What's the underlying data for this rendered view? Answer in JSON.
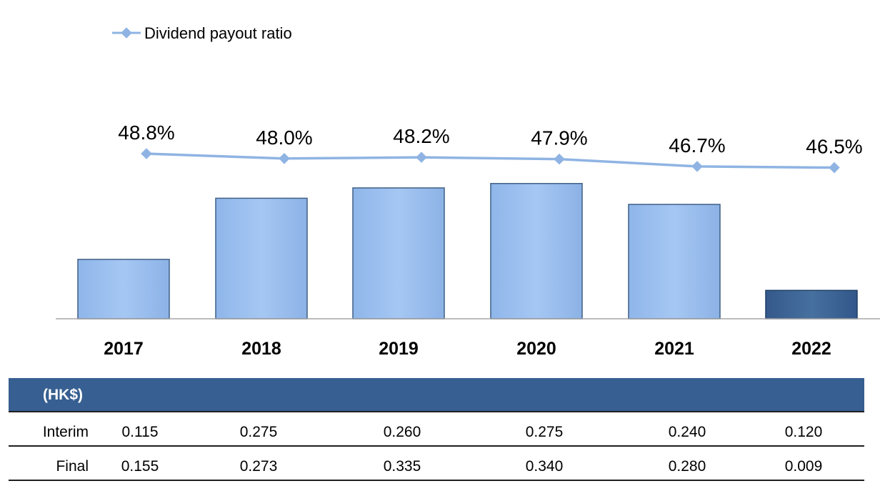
{
  "chart_data": {
    "type": "bar",
    "categories": [
      "2017",
      "2018",
      "2019",
      "2020",
      "2021",
      "2022"
    ],
    "series": [
      {
        "name": "",
        "values": [
          0.27,
          0.548,
          0.595,
          0.615,
          0.52,
          0.129
        ],
        "colors": [
          "#95bdf0",
          "#95bdf0",
          "#95bdf0",
          "#95bdf0",
          "#95bdf0",
          "#3c6496"
        ]
      },
      {
        "name": "Dividend payout ratio",
        "type": "line",
        "values": [
          48.8,
          48.0,
          48.2,
          47.9,
          46.7,
          46.5
        ],
        "labels": [
          "48.8%",
          "48.0%",
          "48.2%",
          "47.9%",
          "46.7%",
          "46.5%"
        ],
        "color": "#8fb4e3"
      }
    ],
    "legend": {
      "position": "top-left",
      "entries": [
        "Dividend payout ratio"
      ]
    },
    "grid": false
  },
  "table": {
    "unit": "(HK$)",
    "rows": [
      {
        "label": "Interim",
        "values": [
          "0.115",
          "0.275",
          "0.260",
          "0.275",
          "0.240",
          "0.120"
        ]
      },
      {
        "label": "Final",
        "values": [
          "0.155",
          "0.273",
          "0.335",
          "0.340",
          "0.280",
          "0.009"
        ]
      }
    ]
  }
}
